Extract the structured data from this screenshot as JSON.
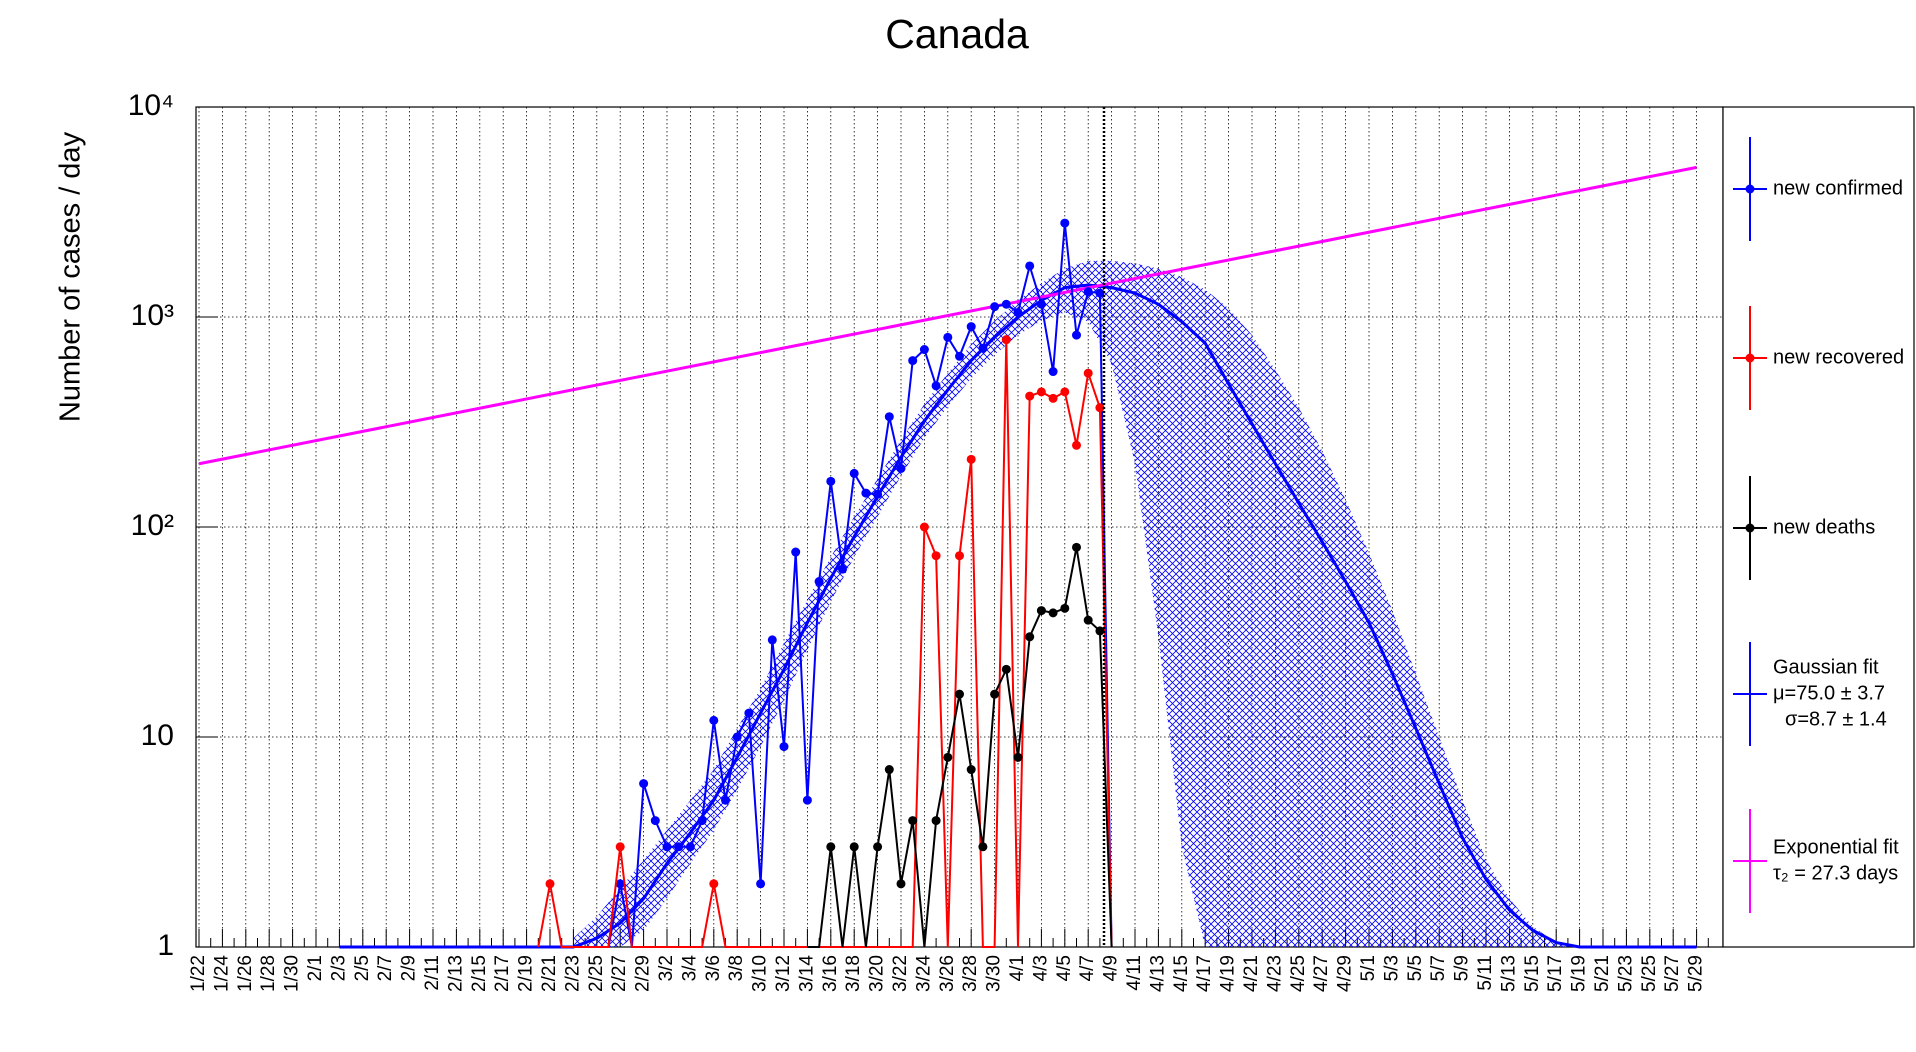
{
  "chart_data": {
    "type": "line",
    "title": "Canada",
    "y_label": "Number of cases / day",
    "log_y": true,
    "grid": true,
    "ylim": [
      1,
      10000
    ],
    "yticks": [
      1,
      10,
      {
        "value": 100,
        "label": "10²"
      },
      {
        "value": 1000,
        "label": "10³"
      },
      {
        "value": 10000,
        "label": "10⁴"
      }
    ],
    "categories": [
      "1/22",
      null,
      "1/24",
      null,
      "1/26",
      null,
      "1/28",
      null,
      "1/30",
      null,
      "2/1",
      null,
      "2/3",
      null,
      "2/5",
      null,
      "2/7",
      null,
      "2/9",
      null,
      "2/11",
      null,
      "2/13",
      null,
      "2/15",
      null,
      "2/17",
      null,
      "2/19",
      null,
      "2/21",
      null,
      "2/23",
      null,
      "2/25",
      null,
      "2/27",
      null,
      "2/29",
      null,
      "3/2",
      null,
      "3/4",
      null,
      "3/6",
      null,
      "3/8",
      null,
      "3/10",
      null,
      "3/12",
      null,
      "3/14",
      null,
      "3/16",
      null,
      "3/18",
      null,
      "3/20",
      null,
      "3/22",
      null,
      "3/24",
      null,
      "3/26",
      null,
      "3/28",
      null,
      "3/30",
      null,
      "4/1",
      null,
      "4/3",
      null,
      "4/5",
      null,
      "4/7",
      null,
      "4/9",
      null,
      "4/11",
      null,
      "4/13",
      null,
      "4/15",
      null,
      "4/17",
      null,
      "4/19",
      null,
      "4/21",
      null,
      "4/23",
      null,
      "4/25",
      null,
      "4/27",
      null,
      "4/29",
      null,
      "5/1",
      null,
      "5/3",
      null,
      "5/5",
      null,
      "5/7",
      null,
      "5/9",
      null,
      "5/11",
      null,
      "5/13",
      null,
      "5/15",
      null,
      "5/17",
      null,
      "5/19",
      null,
      "5/21",
      null,
      "5/23",
      null,
      "5/25",
      null,
      "5/27",
      null,
      "5/29",
      null
    ],
    "series": [
      {
        "name": "new confirmed",
        "color": "#0000ff",
        "values": [
          null,
          null,
          null,
          null,
          null,
          null,
          null,
          null,
          null,
          null,
          null,
          null,
          null,
          null,
          null,
          null,
          null,
          null,
          null,
          null,
          null,
          null,
          null,
          null,
          null,
          null,
          null,
          null,
          null,
          null,
          null,
          null,
          null,
          null,
          null,
          0,
          2,
          0,
          6,
          4,
          3,
          3,
          3,
          4,
          12,
          5,
          10,
          13,
          2,
          29,
          9,
          76,
          5,
          55,
          165,
          63,
          180,
          145,
          143,
          335,
          190,
          620,
          700,
          470,
          800,
          650,
          900,
          710,
          1120,
          1150,
          1050,
          1750,
          1150,
          550,
          2800,
          820,
          1320,
          1300,
          0,
          null,
          null,
          null,
          null,
          null,
          null,
          null,
          null,
          null,
          null,
          null,
          null,
          null,
          null,
          null,
          null,
          null,
          null,
          null,
          null,
          null,
          null,
          null,
          null,
          null,
          null,
          null,
          null,
          null,
          null,
          null,
          null,
          null,
          null,
          null,
          null,
          null,
          null,
          null,
          null,
          null,
          null,
          null,
          null,
          null,
          null,
          null,
          null,
          null,
          null,
          null
        ]
      },
      {
        "name": "new recovered",
        "color": "#ff0000",
        "values": [
          null,
          null,
          null,
          null,
          null,
          null,
          null,
          null,
          null,
          null,
          null,
          null,
          null,
          null,
          null,
          null,
          null,
          null,
          null,
          null,
          null,
          null,
          null,
          null,
          null,
          null,
          null,
          null,
          null,
          0,
          2,
          0,
          0,
          0,
          0,
          0,
          3,
          0,
          0,
          0,
          0,
          0,
          0,
          0,
          2,
          0,
          0,
          0,
          0,
          0,
          0,
          0,
          0,
          0,
          0,
          0,
          0,
          0,
          0,
          0,
          0,
          0,
          100,
          73,
          0,
          73,
          210,
          0,
          0,
          780,
          0,
          420,
          440,
          410,
          440,
          245,
          540,
          370,
          0,
          null,
          null,
          null,
          null,
          null,
          null,
          null,
          null,
          null,
          null,
          null,
          null,
          null,
          null,
          null,
          null,
          null,
          null,
          null,
          null,
          null,
          null,
          null,
          null,
          null,
          null,
          null,
          null,
          null,
          null,
          null,
          null,
          null,
          null,
          null,
          null,
          null,
          null,
          null,
          null,
          null,
          null,
          null,
          null,
          null,
          null,
          null,
          null,
          null,
          null,
          null
        ]
      },
      {
        "name": "new deaths",
        "color": "#000000",
        "values": [
          null,
          null,
          null,
          null,
          null,
          null,
          null,
          null,
          null,
          null,
          null,
          null,
          null,
          null,
          null,
          null,
          null,
          null,
          null,
          null,
          null,
          null,
          null,
          null,
          null,
          null,
          null,
          null,
          null,
          null,
          null,
          null,
          null,
          null,
          null,
          null,
          null,
          null,
          null,
          null,
          null,
          null,
          null,
          null,
          null,
          null,
          null,
          null,
          null,
          null,
          null,
          null,
          0,
          0,
          3,
          0,
          3,
          0,
          3,
          7,
          2,
          4,
          0,
          4,
          8,
          16,
          7,
          3,
          16,
          21,
          8,
          30,
          40,
          39,
          41,
          80,
          36,
          32,
          0,
          null,
          null,
          null,
          null,
          null,
          null,
          null,
          null,
          null,
          null,
          null,
          null,
          null,
          null,
          null,
          null,
          null,
          null,
          null,
          null,
          null,
          null,
          null,
          null,
          null,
          null,
          null,
          null,
          null,
          null,
          null,
          null,
          null,
          null,
          null,
          null,
          null,
          null,
          null,
          null,
          null,
          null,
          null,
          null,
          null,
          null,
          null,
          null,
          null,
          null,
          null
        ]
      }
    ],
    "fits": [
      {
        "name": "Gaussian fit",
        "params": [
          "μ=75.0 ± 3.7",
          "σ=8.7 ± 1.4"
        ],
        "color": "#0000ff",
        "x": [
          "2/3",
          "2/5",
          "2/7",
          "2/9",
          "2/11",
          "2/13",
          "2/15",
          "2/17",
          "2/19",
          "2/21",
          "2/23",
          "2/25",
          "2/27",
          "2/29",
          "3/2",
          "3/4",
          "3/6",
          "3/8",
          "3/10",
          "3/12",
          "3/14",
          "3/16",
          "3/18",
          "3/20",
          "3/22",
          "3/24",
          "3/26",
          "3/28",
          "3/30",
          "4/1",
          "4/3",
          "4/5",
          "4/7",
          "4/9",
          "4/11",
          "4/13",
          "4/15",
          "4/17",
          "4/19",
          "4/21",
          "4/23",
          "4/25",
          "4/27",
          "4/29",
          "5/1",
          "5/3",
          "5/5",
          "5/7",
          "5/9",
          "5/11",
          "5/13",
          "5/15",
          "5/17",
          "5/19",
          "5/21",
          "5/23",
          "5/25",
          "5/27",
          "5/29"
        ],
        "values": [
          1,
          1,
          1,
          1,
          1,
          1,
          1,
          1,
          1,
          1,
          1,
          1.1,
          1.3,
          1.7,
          2.5,
          3.5,
          5,
          8,
          13,
          21,
          35,
          57,
          90,
          140,
          215,
          320,
          450,
          620,
          800,
          1000,
          1200,
          1380,
          1420,
          1380,
          1300,
          1150,
          950,
          750,
          480,
          310,
          200,
          130,
          85,
          55,
          35,
          20,
          11,
          6,
          3.3,
          2.1,
          1.5,
          1.2,
          1.05,
          1,
          1,
          1,
          1,
          1,
          1
        ],
        "band": {
          "x": [
            "2/23",
            "2/25",
            "2/27",
            "2/29",
            "3/2",
            "3/4",
            "3/6",
            "3/8",
            "3/10",
            "3/12",
            "3/14",
            "3/16",
            "3/18",
            "3/20",
            "3/22",
            "3/24",
            "3/26",
            "3/28",
            "3/30",
            "4/1",
            "4/3",
            "4/5",
            "4/7",
            "4/9",
            "4/11",
            "4/13",
            "4/15",
            "4/17",
            "4/19",
            "4/21",
            "4/23",
            "4/25",
            "4/27",
            "4/29",
            "5/1",
            "5/3",
            "5/5",
            "5/7",
            "5/9",
            "5/11",
            "5/13",
            "5/15",
            "5/17",
            "5/19",
            "5/21"
          ],
          "low": [
            1,
            1,
            1,
            1.2,
            1.7,
            2.5,
            3.6,
            5.6,
            9,
            15,
            26,
            44,
            72,
            112,
            175,
            265,
            375,
            510,
            660,
            820,
            960,
            1050,
            950,
            600,
            200,
            30,
            3,
            1,
            1,
            1,
            1,
            1,
            1,
            1,
            1,
            1,
            1,
            1,
            1,
            1,
            1,
            1,
            1,
            1,
            1
          ],
          "high": [
            1.1,
            1.4,
            1.9,
            2.6,
            3.6,
            5,
            7,
            11,
            17,
            28,
            45,
            72,
            112,
            170,
            260,
            385,
            540,
            740,
            960,
            1200,
            1450,
            1700,
            1850,
            1850,
            1800,
            1700,
            1550,
            1350,
            1100,
            820,
            560,
            370,
            230,
            135,
            75,
            40,
            20,
            10,
            5,
            2.6,
            1.7,
            1.25,
            1.05,
            1,
            1
          ]
        }
      },
      {
        "name": "Exponential fit",
        "params": [
          "τ₂ = 27.3 days"
        ],
        "color": "#ff00ff",
        "x": [
          "1/22",
          "5/29"
        ],
        "values": [
          200,
          5160
        ]
      }
    ]
  }
}
